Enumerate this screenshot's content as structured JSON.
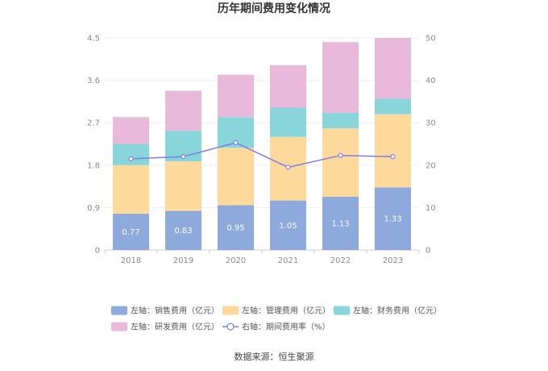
{
  "chart_data": {
    "type": "bar",
    "title": "历年期间费用变化情况",
    "categories": [
      "2018",
      "2019",
      "2020",
      "2021",
      "2022",
      "2023"
    ],
    "series": [
      {
        "name": "左轴：销售费用（亿元）",
        "axis": "left",
        "color": "#8eaadc",
        "values": [
          0.77,
          0.83,
          0.95,
          1.05,
          1.13,
          1.33
        ],
        "labels": [
          "0.77",
          "0.83",
          "0.95",
          "1.05",
          "1.13",
          "1.33"
        ]
      },
      {
        "name": "左轴：管理费用（亿元）",
        "axis": "left",
        "color": "#fdd99b",
        "values": [
          1.03,
          1.05,
          1.22,
          1.35,
          1.45,
          1.55
        ]
      },
      {
        "name": "左轴：财务费用（亿元）",
        "axis": "left",
        "color": "#88d6da",
        "values": [
          0.45,
          0.65,
          0.65,
          0.62,
          0.33,
          0.33
        ]
      },
      {
        "name": "左轴：研发费用（亿元）",
        "axis": "left",
        "color": "#e9b9dc",
        "values": [
          0.57,
          0.85,
          0.9,
          0.9,
          1.5,
          1.29
        ]
      },
      {
        "name": "右轴：期间费用率（%）",
        "axis": "right",
        "type": "line",
        "color": "#7b7fe6",
        "values": [
          21.5,
          22.0,
          25.3,
          19.5,
          22.3,
          22.0
        ]
      }
    ],
    "yleft": {
      "min": 0,
      "max": 4.5,
      "ticks": [
        "0",
        "0.9",
        "1.8",
        "2.7",
        "3.6",
        "4.5"
      ]
    },
    "yright": {
      "min": 0,
      "max": 50,
      "ticks": [
        "0",
        "10",
        "20",
        "30",
        "40",
        "50"
      ]
    },
    "grid": true,
    "legend": "bottom"
  },
  "source": "数据来源：恒生聚源"
}
